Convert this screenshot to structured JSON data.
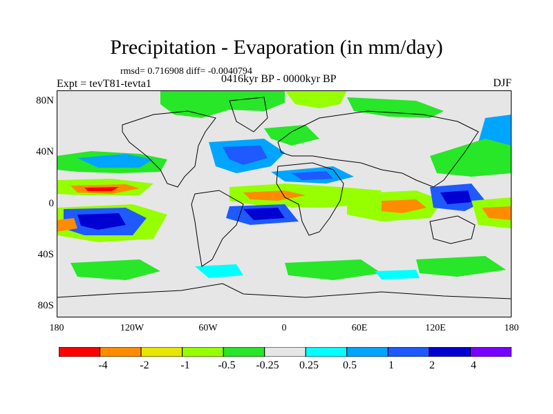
{
  "title": "Precipitation - Evaporation (in mm/day)",
  "stats": "rmsd= 0.716908 diff= -0.0040794",
  "experiment": "Expt = tevT81-tevta1",
  "period": "0416kyr BP - 0000kyr BP",
  "season": "DJF",
  "axes": {
    "lat_labels": [
      "80N",
      "40N",
      "0",
      "40S",
      "80S"
    ],
    "lon_labels": [
      "180",
      "120W",
      "60W",
      "0",
      "60E",
      "120E",
      "180"
    ]
  },
  "colorbar": {
    "colors": [
      "#ff0000",
      "#ff8c00",
      "#e6e600",
      "#96ff00",
      "#28e628",
      "#e6e6e6",
      "#00ffff",
      "#00a5ff",
      "#1e5aff",
      "#0000d2",
      "#7800ff"
    ],
    "labels": [
      "-4",
      "-2",
      "-1",
      "-0.5",
      "-0.25",
      "0.25",
      "0.5",
      "1",
      "2",
      "4"
    ]
  },
  "colors": {
    "ocean_background": "#e6e6e6",
    "coastline": "#000000"
  }
}
